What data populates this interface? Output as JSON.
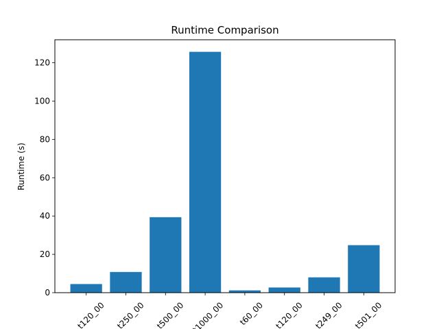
{
  "chart_data": {
    "type": "bar",
    "title": "Runtime Comparison",
    "xlabel": "",
    "ylabel": "Runtime (s)",
    "categories": [
      "t120_00",
      "t250_00",
      "t500_00",
      "t1000_00",
      "t60_00",
      "t120_00",
      "t249_00",
      "t501_00"
    ],
    "values": [
      4.5,
      10.8,
      39.4,
      125.7,
      1.2,
      2.7,
      8.0,
      24.8
    ],
    "ylim": [
      0,
      132
    ],
    "yticks": [
      0,
      20,
      40,
      60,
      80,
      100,
      120
    ],
    "bar_color": "#1f77b4",
    "grid": false,
    "legend": "none"
  }
}
